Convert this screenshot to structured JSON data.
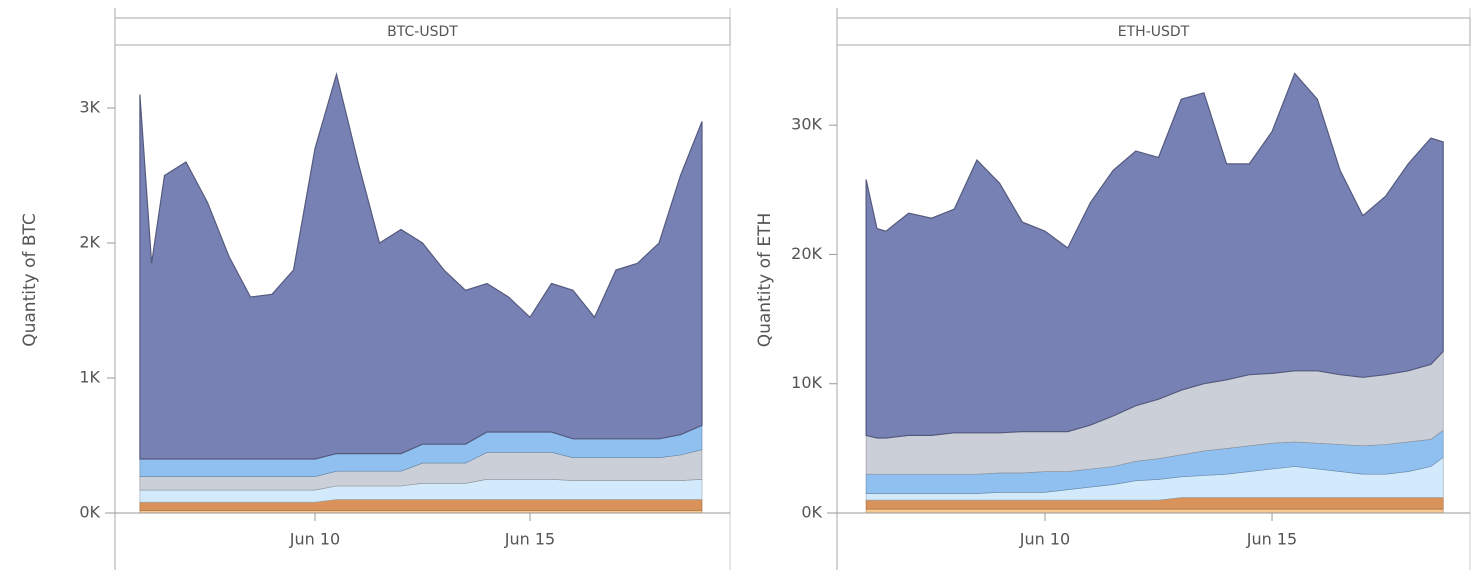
{
  "chart_data": [
    {
      "type": "area",
      "stacked": true,
      "title": "BTC-USDT",
      "y_label": "Quantity of BTC",
      "x": [
        5.93,
        6.2,
        6.5,
        7.0,
        7.5,
        8.0,
        8.5,
        9.0,
        9.5,
        10.0,
        10.5,
        11.0,
        11.5,
        12.0,
        12.5,
        13.0,
        13.5,
        14.0,
        14.5,
        15.0,
        15.5,
        16.0,
        16.5,
        17.0,
        17.5,
        18.0,
        18.5,
        19.0
      ],
      "xlim": [
        5.35,
        19.65
      ],
      "xticks": [
        {
          "value": 10,
          "label": "Jun 10"
        },
        {
          "value": 15,
          "label": "Jun 15"
        }
      ],
      "ylim": [
        0,
        3467
      ],
      "yticks": [
        {
          "value": 0,
          "label": "0K"
        },
        {
          "value": 1000,
          "label": "1K"
        },
        {
          "value": 2000,
          "label": "2K"
        },
        {
          "value": 3000,
          "label": "3K"
        }
      ],
      "series": [
        {
          "color": "#f6c78f",
          "values": [
            20,
            20,
            20,
            20,
            20,
            20,
            20,
            20,
            20,
            20,
            20,
            20,
            20,
            20,
            20,
            20,
            20,
            20,
            20,
            20,
            20,
            20,
            20,
            20,
            20,
            20,
            20,
            20
          ]
        },
        {
          "color": "#d9925a",
          "values": [
            60,
            60,
            60,
            60,
            60,
            60,
            60,
            60,
            60,
            60,
            80,
            80,
            80,
            80,
            80,
            80,
            80,
            80,
            80,
            80,
            80,
            80,
            80,
            80,
            80,
            80,
            80,
            80
          ]
        },
        {
          "color": "#d3eafc",
          "values": [
            90,
            90,
            90,
            90,
            90,
            90,
            90,
            90,
            90,
            90,
            100,
            100,
            100,
            100,
            120,
            120,
            120,
            150,
            150,
            150,
            150,
            140,
            140,
            140,
            140,
            140,
            140,
            150
          ]
        },
        {
          "color": "#cbcfd8",
          "values": [
            100,
            100,
            100,
            100,
            100,
            100,
            100,
            100,
            100,
            100,
            110,
            110,
            110,
            110,
            150,
            150,
            150,
            200,
            200,
            200,
            200,
            170,
            170,
            170,
            170,
            170,
            190,
            220
          ]
        },
        {
          "color": "#8fc0f0",
          "values": [
            130,
            130,
            130,
            130,
            130,
            130,
            130,
            130,
            130,
            130,
            130,
            130,
            130,
            130,
            140,
            140,
            140,
            150,
            150,
            150,
            150,
            140,
            140,
            140,
            140,
            140,
            150,
            180
          ]
        },
        {
          "color": "#7881b4",
          "values": [
            2700,
            1450,
            2100,
            2200,
            1900,
            1500,
            1200,
            1220,
            1400,
            2300,
            2810,
            2160,
            1560,
            1660,
            1490,
            1290,
            1140,
            1100,
            1000,
            850,
            1100,
            1100,
            900,
            1250,
            1300,
            1450,
            1920,
            2250
          ]
        }
      ]
    },
    {
      "type": "area",
      "stacked": true,
      "title": "ETH-USDT",
      "y_label": "Quantity of ETH",
      "x": [
        6.06,
        6.3,
        6.5,
        7.0,
        7.5,
        8.0,
        8.5,
        9.0,
        9.5,
        10.0,
        10.5,
        11.0,
        11.5,
        12.0,
        12.5,
        13.0,
        13.5,
        14.0,
        14.5,
        15.0,
        15.5,
        16.0,
        16.5,
        17.0,
        17.5,
        18.0,
        18.5,
        18.77
      ],
      "xlim": [
        5.42,
        19.36
      ],
      "xticks": [
        {
          "value": 10,
          "label": "Jun 10"
        },
        {
          "value": 15,
          "label": "Jun 15"
        }
      ],
      "ylim": [
        0,
        36200
      ],
      "yticks": [
        {
          "value": 0,
          "label": "0K"
        },
        {
          "value": 10000,
          "label": "10K"
        },
        {
          "value": 20000,
          "label": "20K"
        },
        {
          "value": 30000,
          "label": "30K"
        }
      ],
      "series": [
        {
          "color": "#f6c78f",
          "values": [
            300,
            300,
            300,
            300,
            300,
            300,
            300,
            300,
            300,
            300,
            300,
            300,
            300,
            300,
            300,
            300,
            300,
            300,
            300,
            300,
            300,
            300,
            300,
            300,
            300,
            300,
            300,
            300
          ]
        },
        {
          "color": "#d9925a",
          "values": [
            700,
            700,
            700,
            700,
            700,
            700,
            700,
            700,
            700,
            700,
            700,
            700,
            700,
            700,
            700,
            900,
            900,
            900,
            900,
            900,
            900,
            900,
            900,
            900,
            900,
            900,
            900,
            900
          ]
        },
        {
          "color": "#d3eafc",
          "values": [
            500,
            500,
            500,
            500,
            500,
            500,
            500,
            600,
            600,
            600,
            800,
            1000,
            1200,
            1500,
            1600,
            1600,
            1700,
            1800,
            2000,
            2200,
            2400,
            2200,
            2000,
            1800,
            1800,
            2000,
            2400,
            3100
          ]
        },
        {
          "color": "#8fc0f0",
          "values": [
            1500,
            1500,
            1500,
            1500,
            1500,
            1500,
            1500,
            1500,
            1500,
            1600,
            1400,
            1400,
            1400,
            1500,
            1600,
            1700,
            1900,
            2000,
            2000,
            2000,
            1900,
            2000,
            2100,
            2200,
            2300,
            2300,
            2100,
            2100
          ]
        },
        {
          "color": "#cbcfd8",
          "values": [
            3000,
            2800,
            2800,
            3000,
            3000,
            3200,
            3200,
            3100,
            3200,
            3100,
            3100,
            3400,
            3900,
            4300,
            4600,
            5000,
            5200,
            5300,
            5500,
            5400,
            5500,
            5600,
            5400,
            5300,
            5400,
            5500,
            5800,
            6100
          ]
        },
        {
          "color": "#7881b4",
          "values": [
            19800,
            16200,
            16000,
            17200,
            16800,
            17300,
            21100,
            19300,
            16200,
            15500,
            14200,
            17200,
            19000,
            19700,
            18700,
            22500,
            22500,
            16700,
            16300,
            18700,
            23000,
            21000,
            15800,
            12500,
            13800,
            16000,
            17500,
            16200
          ]
        }
      ]
    }
  ]
}
